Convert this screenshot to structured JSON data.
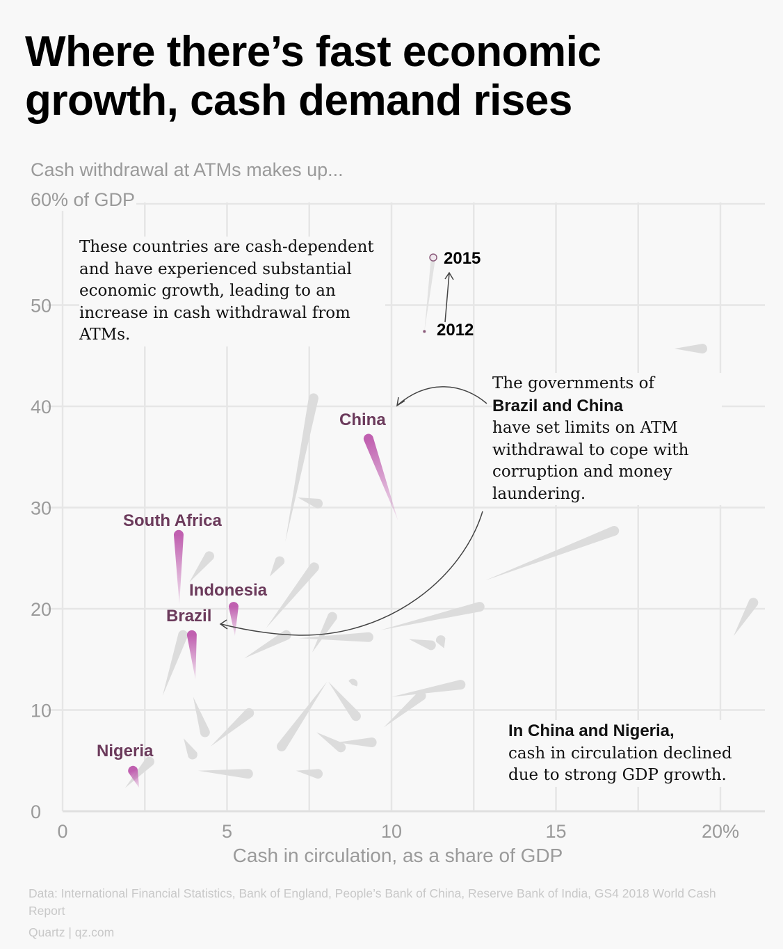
{
  "header": {
    "title": "Where there’s fast economic growth, cash demand rises",
    "subtitle": "Cash withdrawal at ATMs makes up..."
  },
  "annotations": {
    "left": "These countries are cash-dependent and have experienced substantial economic growth, leading to an increase in cash withdrawal from ATMs.",
    "right_pre": "The governments of",
    "right_bold": "Brazil and China",
    "right_post": "have set limits on ATM withdrawal to cope with corruption and money laundering.",
    "bottom_bold": "In China and Nigeria,",
    "bottom_post": "cash in circulation declined due to strong GDP growth.",
    "year_end": "2015",
    "year_start": "2012"
  },
  "footer": {
    "source": "Data: International Financial Statistics, Bank of England, People’s Bank of China, Reserve Bank of India, GS4 2018 World Cash Report",
    "credit": "Quartz | qz.com"
  },
  "colors": {
    "highlight": "#c060b0",
    "highlight_label": "#6b3a5b",
    "other": "#dcdcdc",
    "grid": "#e6e6e6",
    "axis_text": "#9a9a9a"
  },
  "chart_data": {
    "type": "scatter",
    "subtype": "comet (2012 to 2015)",
    "title": "Where there’s fast economic growth, cash demand rises",
    "xlabel": "Cash in circulation, as a share of GDP",
    "ylabel": "Cash withdrawal at ATMs makes up...",
    "xlim": [
      0,
      21.5
    ],
    "ylim": [
      0,
      60
    ],
    "x_ticks": [
      0,
      5,
      10,
      15,
      20
    ],
    "x_tick_labels": [
      "0",
      "5",
      "10",
      "15",
      "20%"
    ],
    "y_ticks": [
      0,
      10,
      20,
      30,
      40,
      50,
      60
    ],
    "y_tick_labels": [
      "0",
      "10",
      "20",
      "30",
      "40",
      "50",
      "60% of GDP"
    ],
    "grid": true,
    "series": [
      {
        "name": "China",
        "highlight": true,
        "x2012": 10.2,
        "y2012": 28.7,
        "x2015": 9.3,
        "y2015": 36.8
      },
      {
        "name": "South Africa",
        "highlight": true,
        "x2012": 3.55,
        "y2012": 20.4,
        "x2015": 3.53,
        "y2015": 27.3
      },
      {
        "name": "Indonesia",
        "highlight": true,
        "x2012": 5.24,
        "y2012": 17.3,
        "x2015": 5.2,
        "y2015": 20.2
      },
      {
        "name": "Brazil",
        "highlight": true,
        "x2012": 4.04,
        "y2012": 13.0,
        "x2015": 3.93,
        "y2015": 17.4
      },
      {
        "name": "Nigeria",
        "highlight": true,
        "x2012": 2.33,
        "y2012": 2.3,
        "x2015": 2.14,
        "y2015": 4.0
      },
      {
        "name": "",
        "legend": true,
        "x2012": 11.0,
        "y2012": 47.4,
        "x2015": 11.27,
        "y2015": 54.7
      },
      {
        "name": "",
        "x2012": 6.77,
        "y2012": 26.6,
        "x2015": 7.63,
        "y2015": 40.8
      },
      {
        "name": "",
        "x2012": 7.15,
        "y2012": 31.0,
        "x2015": 7.76,
        "y2015": 30.4
      },
      {
        "name": "",
        "x2012": 20.4,
        "y2012": 17.3,
        "x2015": 21.0,
        "y2015": 20.6
      },
      {
        "name": "",
        "x2012": 18.6,
        "y2012": 45.7,
        "x2015": 19.45,
        "y2015": 45.7
      },
      {
        "name": "",
        "x2012": 12.85,
        "y2012": 22.8,
        "x2015": 16.77,
        "y2015": 27.7
      },
      {
        "name": "",
        "x2012": 9.68,
        "y2012": 17.9,
        "x2015": 12.68,
        "y2015": 20.2
      },
      {
        "name": "",
        "x2012": 10.53,
        "y2012": 17.0,
        "x2015": 11.2,
        "y2015": 16.4
      },
      {
        "name": "",
        "x2012": 11.6,
        "y2012": 16.1,
        "x2015": 11.5,
        "y2015": 16.9
      },
      {
        "name": "",
        "x2012": 3.85,
        "y2012": 22.6,
        "x2015": 4.46,
        "y2015": 25.2
      },
      {
        "name": "",
        "x2012": 3.04,
        "y2012": 11.4,
        "x2015": 3.66,
        "y2015": 17.4
      },
      {
        "name": "",
        "x2012": 6.19,
        "y2012": 18.1,
        "x2015": 7.65,
        "y2015": 24.1
      },
      {
        "name": "",
        "x2012": 5.52,
        "y2012": 15.1,
        "x2015": 6.8,
        "y2015": 17.4
      },
      {
        "name": "",
        "x2012": 7.59,
        "y2012": 15.7,
        "x2015": 8.2,
        "y2015": 19.2
      },
      {
        "name": "",
        "x2012": 7.19,
        "y2012": 17.1,
        "x2015": 9.3,
        "y2015": 17.2
      },
      {
        "name": "",
        "x2012": 6.3,
        "y2012": 23.2,
        "x2015": 6.6,
        "y2015": 24.7
      },
      {
        "name": "",
        "x2012": 3.97,
        "y2012": 11.3,
        "x2015": 4.33,
        "y2015": 7.8
      },
      {
        "name": "",
        "x2012": 4.5,
        "y2012": 6.4,
        "x2015": 5.67,
        "y2015": 9.7
      },
      {
        "name": "",
        "x2012": 3.68,
        "y2012": 7.2,
        "x2015": 3.95,
        "y2015": 5.6
      },
      {
        "name": "",
        "x2012": 4.12,
        "y2012": 4.0,
        "x2015": 5.64,
        "y2015": 3.7
      },
      {
        "name": "",
        "x2012": 7.1,
        "y2012": 4.0,
        "x2015": 7.76,
        "y2015": 3.7
      },
      {
        "name": "",
        "x2012": 8.08,
        "y2012": 12.8,
        "x2015": 8.92,
        "y2015": 9.4
      },
      {
        "name": "",
        "x2012": 8.8,
        "y2012": 12.5,
        "x2015": 8.82,
        "y2015": 12.6
      },
      {
        "name": "",
        "x2012": 8.04,
        "y2012": 12.8,
        "x2015": 6.66,
        "y2015": 6.4
      },
      {
        "name": "",
        "x2012": 7.72,
        "y2012": 7.8,
        "x2015": 8.46,
        "y2015": 6.3
      },
      {
        "name": "",
        "x2012": 8.35,
        "y2012": 6.8,
        "x2015": 9.4,
        "y2015": 6.8
      },
      {
        "name": "",
        "x2012": 10.0,
        "y2012": 11.3,
        "x2015": 12.1,
        "y2015": 12.5
      },
      {
        "name": "",
        "x2012": 9.77,
        "y2012": 8.3,
        "x2015": 10.9,
        "y2015": 11.4
      },
      {
        "name": "",
        "x2012": 1.9,
        "y2012": 2.3,
        "x2015": 2.64,
        "y2015": 4.9
      }
    ]
  }
}
